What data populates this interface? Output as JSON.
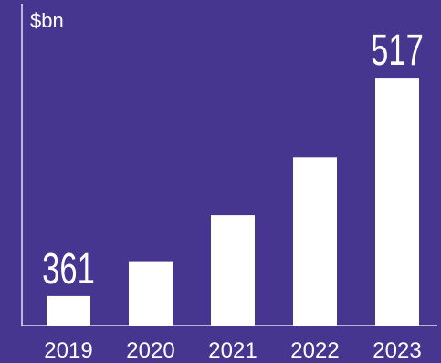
{
  "colors": {
    "background": "#47368f",
    "bar": "#ffffff",
    "text": "#ffffff"
  },
  "chart_data": {
    "type": "bar",
    "title": "",
    "xlabel": "",
    "ylabel": "$bn",
    "categories": [
      "2019",
      "2020",
      "2021",
      "2022",
      "2023"
    ],
    "values": [
      361,
      386,
      419,
      460,
      517
    ],
    "data_labels": [
      "361",
      "",
      "",
      "",
      "517"
    ],
    "ylim": [
      340,
      570
    ],
    "grid": false,
    "legend": "none"
  }
}
